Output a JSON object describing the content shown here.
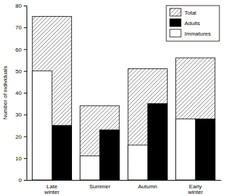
{
  "chart_data": {
    "type": "bar",
    "y_label": "Number of individuals",
    "categories": [
      "Late winter",
      "Summer",
      "Autumn",
      "Early winter"
    ],
    "series": [
      {
        "name": "Total",
        "color": "#8a8a8a",
        "values": [
          75,
          34,
          51,
          56
        ]
      },
      {
        "name": "Adults",
        "color": "#000000",
        "values": [
          25,
          23,
          35,
          28
        ]
      },
      {
        "name": "Immatures",
        "color": "#ffffff",
        "values": [
          50,
          11,
          16,
          28
        ]
      }
    ],
    "stacked": false,
    "legend": "upper right",
    "ylim": [
      0,
      80
    ],
    "yticks": [
      0,
      10,
      20,
      30,
      40,
      50,
      60,
      70,
      80
    ],
    "grid": false
  }
}
